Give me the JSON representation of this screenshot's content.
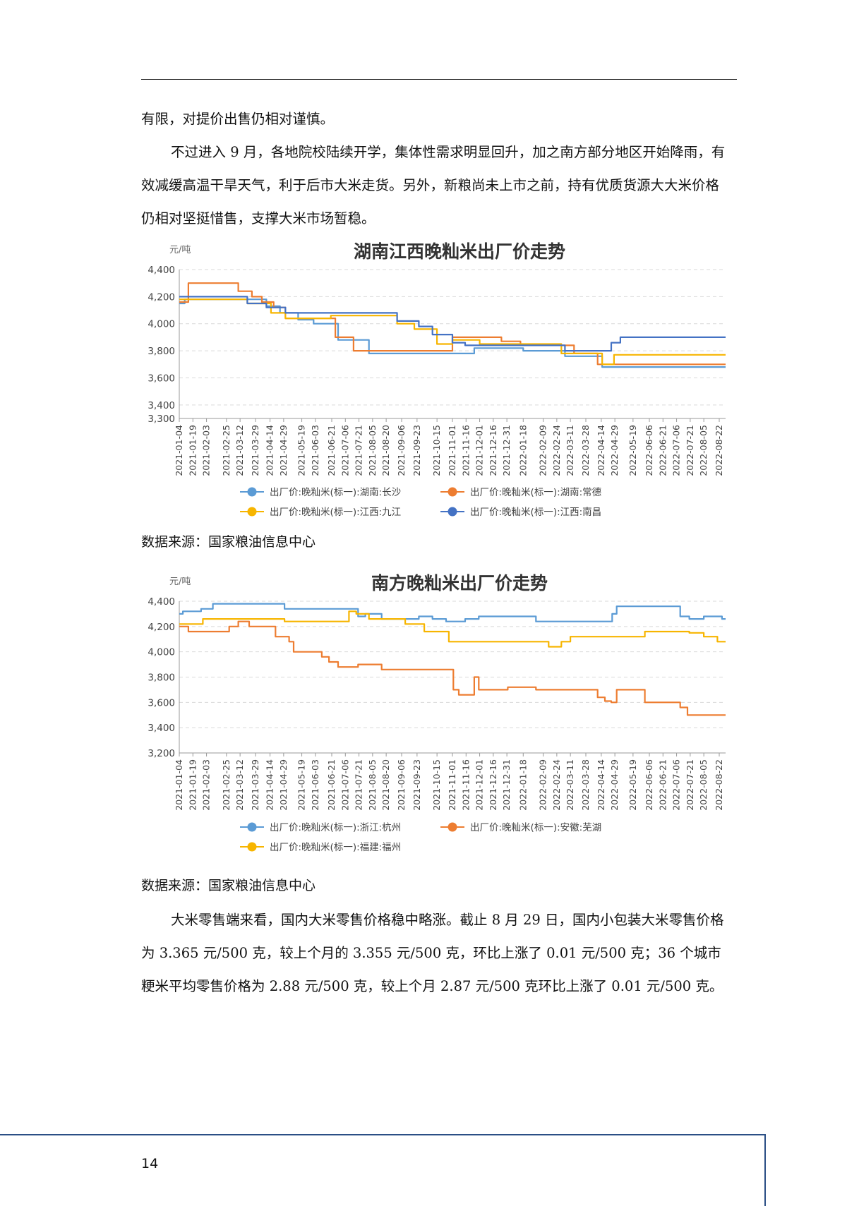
{
  "paragraphs": {
    "p1": "有限，对提价出售仍相对谨慎。",
    "p2": "不过进入 9 月，各地院校陆续开学，集体性需求明显回升，加之南方部分地区开始降雨，有效减缓高温干旱天气，利于后市大米走货。另外，新粮尚未上市之前，持有优质货源大大米价格仍相对坚挺惜售，支撑大米市场暂稳。",
    "p3": "大米零售端来看，国内大米零售价格稳中略涨。截止 8 月 29 日，国内小包装大米零售价格为 3.365 元/500 克，较上个月的 3.355 元/500 克，环比上涨了 0.01 元/500 克；36 个城市粳米平均零售价格为 2.88 元/500 克，较上个月 2.87 元/500 克环比上涨了 0.01 元/500 克。"
  },
  "source1": "数据来源：国家粮油信息中心",
  "source2": "数据来源：国家粮油信息中心",
  "page_number": "14",
  "chart_data": [
    {
      "type": "line",
      "title": "湖南江西晚籼米出厂价走势",
      "unit": "元/吨",
      "ylim": [
        3300,
        4400
      ],
      "yticks": [
        3300,
        3400,
        3600,
        3800,
        4000,
        4200,
        4400
      ],
      "xlim": [
        "2021-01-04",
        "2022-08-29"
      ],
      "xticks": [
        "2021-01-04",
        "2021-01-19",
        "2021-02-03",
        "2021-02-25",
        "2021-03-12",
        "2021-03-29",
        "2021-04-14",
        "2021-04-29",
        "2021-05-19",
        "2021-06-03",
        "2021-06-21",
        "2021-07-06",
        "2021-07-21",
        "2021-08-05",
        "2021-08-20",
        "2021-09-06",
        "2021-09-23",
        "2021-10-15",
        "2021-11-01",
        "2021-11-16",
        "2021-12-01",
        "2021-12-16",
        "2021-12-31",
        "2022-01-18",
        "2022-02-09",
        "2022-02-24",
        "2022-03-11",
        "2022-03-28",
        "2022-04-14",
        "2022-04-29",
        "2022-05-19",
        "2022-06-06",
        "2022-06-21",
        "2022-07-06",
        "2022-07-21",
        "2022-08-05",
        "2022-08-22"
      ],
      "grid": true,
      "legend_position": "bottom",
      "series": [
        {
          "name": "出厂价:晚籼米(标一):湖南:长沙",
          "color": "#5b9bd5",
          "step": true,
          "x": [
            "2021-01-04",
            "2021-01-10",
            "2021-04-10",
            "2021-04-25",
            "2021-05-15",
            "2021-06-01",
            "2021-06-28",
            "2021-07-15",
            "2021-08-01",
            "2021-11-10",
            "2021-11-25",
            "2022-01-18",
            "2022-03-05",
            "2022-04-15",
            "2022-08-29"
          ],
          "y": [
            4150,
            4180,
            4130,
            4080,
            4030,
            4000,
            3880,
            3880,
            3780,
            3780,
            3820,
            3800,
            3760,
            3680,
            3680
          ]
        },
        {
          "name": "出厂价:晚籼米(标一):湖南:常德",
          "color": "#ed7d31",
          "step": true,
          "x": [
            "2021-01-04",
            "2021-01-14",
            "2021-03-10",
            "2021-03-25",
            "2021-04-05",
            "2021-04-18",
            "2021-05-01",
            "2021-06-25",
            "2021-07-15",
            "2021-10-15",
            "2021-11-01",
            "2021-12-25",
            "2022-01-15",
            "2022-03-15",
            "2022-04-10",
            "2022-08-29"
          ],
          "y": [
            4160,
            4300,
            4240,
            4200,
            4160,
            4120,
            4040,
            3900,
            3800,
            3800,
            3900,
            3870,
            3840,
            3780,
            3700,
            3700
          ]
        },
        {
          "name": "出厂价:晚籼米(标一):江西:九江",
          "color": "#f7b500",
          "step": true,
          "x": [
            "2021-01-04",
            "2021-03-20",
            "2021-04-15",
            "2021-05-01",
            "2021-06-20",
            "2021-09-01",
            "2021-09-20",
            "2021-10-15",
            "2021-11-01",
            "2021-12-01",
            "2022-03-01",
            "2022-04-15",
            "2022-04-28",
            "2022-08-29"
          ],
          "y": [
            4180,
            4150,
            4080,
            4040,
            4060,
            4000,
            3960,
            3850,
            3880,
            3850,
            3780,
            3700,
            3770,
            3770
          ]
        },
        {
          "name": "出厂价:晚籼米(标一):江西:南昌",
          "color": "#4472c4",
          "step": true,
          "x": [
            "2021-01-04",
            "2021-03-20",
            "2021-04-10",
            "2021-05-01",
            "2021-09-01",
            "2021-09-25",
            "2021-10-10",
            "2021-11-01",
            "2021-11-15",
            "2022-01-20",
            "2022-03-05",
            "2022-04-25",
            "2022-05-05",
            "2022-08-29"
          ],
          "y": [
            4200,
            4150,
            4120,
            4080,
            4020,
            3980,
            3920,
            3860,
            3840,
            3840,
            3800,
            3860,
            3900,
            3900
          ]
        }
      ]
    },
    {
      "type": "line",
      "title": "南方晚籼米出厂价走势",
      "unit": "元/吨",
      "ylim": [
        3200,
        4400
      ],
      "yticks": [
        3200,
        3400,
        3600,
        3800,
        4000,
        4200,
        4400
      ],
      "xlim": [
        "2021-01-04",
        "2022-08-29"
      ],
      "xticks": [
        "2021-01-04",
        "2021-01-19",
        "2021-02-03",
        "2021-02-25",
        "2021-03-12",
        "2021-03-29",
        "2021-04-14",
        "2021-04-29",
        "2021-05-19",
        "2021-06-03",
        "2021-06-21",
        "2021-07-06",
        "2021-07-21",
        "2021-08-05",
        "2021-08-20",
        "2021-09-06",
        "2021-09-23",
        "2021-10-15",
        "2021-11-01",
        "2021-11-16",
        "2021-12-01",
        "2021-12-16",
        "2021-12-31",
        "2022-01-18",
        "2022-02-09",
        "2022-02-24",
        "2022-03-11",
        "2022-03-28",
        "2022-04-14",
        "2022-04-29",
        "2022-05-19",
        "2022-06-06",
        "2022-06-21",
        "2022-07-06",
        "2022-07-21",
        "2022-08-05",
        "2022-08-22"
      ],
      "grid": true,
      "legend_position": "bottom",
      "series": [
        {
          "name": "出厂价:晚籼米(标一):浙江:杭州",
          "color": "#5b9bd5",
          "step": true,
          "x": [
            "2021-01-04",
            "2021-01-08",
            "2021-01-28",
            "2021-02-10",
            "2021-04-30",
            "2021-07-20",
            "2021-07-28",
            "2021-08-15",
            "2021-09-25",
            "2021-10-10",
            "2021-10-25",
            "2021-11-15",
            "2021-11-30",
            "2022-02-01",
            "2022-04-26",
            "2022-05-01",
            "2022-07-10",
            "2022-07-20",
            "2022-07-30",
            "2022-08-05",
            "2022-08-25",
            "2022-08-29"
          ],
          "y": [
            4300,
            4320,
            4340,
            4380,
            4340,
            4280,
            4300,
            4260,
            4280,
            4260,
            4240,
            4260,
            4280,
            4240,
            4300,
            4360,
            4280,
            4260,
            4260,
            4280,
            4260,
            4260
          ]
        },
        {
          "name": "出厂价:晚籼米(标一):安徽:芜湖",
          "color": "#ed7d31",
          "step": true,
          "x": [
            "2021-01-04",
            "2021-01-14",
            "2021-02-28",
            "2021-03-10",
            "2021-03-22",
            "2021-04-20",
            "2021-05-05",
            "2021-05-10",
            "2021-06-10",
            "2021-06-18",
            "2021-06-28",
            "2021-07-05",
            "2021-07-20",
            "2021-08-15",
            "2021-10-30",
            "2021-11-02",
            "2021-11-08",
            "2021-11-25",
            "2021-11-30",
            "2021-12-05",
            "2022-01-01",
            "2022-02-01",
            "2022-04-10",
            "2022-04-18",
            "2022-04-25",
            "2022-05-01",
            "2022-06-01",
            "2022-07-10",
            "2022-07-18",
            "2022-08-29"
          ],
          "y": [
            4200,
            4160,
            4200,
            4240,
            4200,
            4120,
            4080,
            4000,
            3960,
            3920,
            3880,
            3880,
            3900,
            3860,
            3860,
            3700,
            3660,
            3800,
            3700,
            3700,
            3720,
            3700,
            3640,
            3610,
            3600,
            3700,
            3600,
            3560,
            3500,
            3500
          ]
        },
        {
          "name": "出厂价:晚籼米(标一):福建:福州",
          "color": "#f7b500",
          "step": true,
          "x": [
            "2021-01-04",
            "2021-01-30",
            "2021-04-30",
            "2021-07-10",
            "2021-07-18",
            "2021-08-01",
            "2021-09-10",
            "2021-10-01",
            "2021-10-28",
            "2022-02-15",
            "2022-03-01",
            "2022-03-11",
            "2022-06-01",
            "2022-07-20",
            "2022-08-05",
            "2022-08-20",
            "2022-08-29"
          ],
          "y": [
            4220,
            4260,
            4240,
            4320,
            4300,
            4260,
            4220,
            4160,
            4080,
            4040,
            4080,
            4120,
            4160,
            4150,
            4120,
            4080,
            4080
          ]
        }
      ]
    }
  ]
}
